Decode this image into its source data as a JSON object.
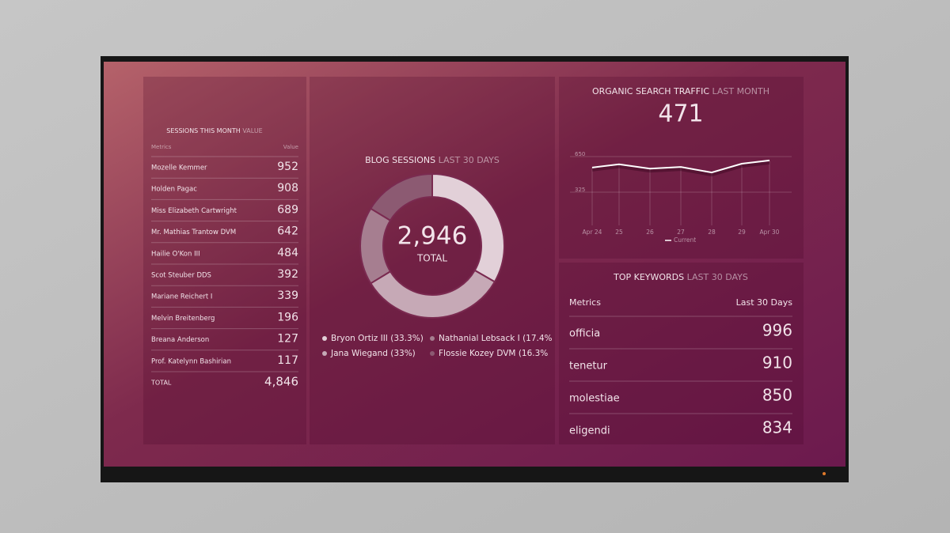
{
  "sessions_table": {
    "title": "SESSIONS THIS MONTH",
    "subtitle": "VALUE",
    "columns": [
      "Metrics",
      "Value"
    ],
    "rows": [
      [
        "Mozelle Kemmer",
        "952"
      ],
      [
        "Holden Pagac",
        "908"
      ],
      [
        "Miss Elizabeth Cartwright",
        "689"
      ],
      [
        "Mr. Mathias Trantow DVM",
        "642"
      ],
      [
        "Hailie O'Kon III",
        "484"
      ],
      [
        "Scot Steuber DDS",
        "392"
      ],
      [
        "Mariane Reichert I",
        "339"
      ],
      [
        "Melvin Breitenberg",
        "196"
      ],
      [
        "Breana Anderson",
        "127"
      ],
      [
        "Prof. Katelynn Bashirian",
        "117"
      ]
    ],
    "total": [
      "TOTAL",
      "4,846"
    ]
  },
  "blog_sessions": {
    "title": "BLOG SESSIONS",
    "subtitle": "LAST 30 DAYS",
    "total": "2,946",
    "total_label": "TOTAL",
    "donut": {
      "type": "pie",
      "labels": [
        "Bryon Ortiz III (33.3%)",
        "Jana Wiegand (33%)",
        "Nathanial Lebsack I (17.4%",
        "Flossie Kozey DVM (16.3%"
      ],
      "values": [
        33.3,
        33,
        17.4,
        16.3
      ],
      "colors": [
        "#e2d0d8",
        "#c6a9b6",
        "#a67e90",
        "#8c5a72"
      ]
    }
  },
  "traffic": {
    "title": "ORGANIC SEARCH TRAFFIC",
    "subtitle": "LAST MONTH",
    "value": "471",
    "chart": {
      "type": "line",
      "categories": [
        "Apr 24",
        "25",
        "26",
        "27",
        "28",
        "29",
        "Apr 30"
      ],
      "series": [
        {
          "name": "Current",
          "color": "#ffffff",
          "values": [
            550,
            580,
            540,
            555,
            505,
            585,
            615
          ]
        }
      ],
      "ylim": [
        0,
        700
      ],
      "yticks": [
        325,
        650
      ],
      "grid": true
    }
  },
  "keywords": {
    "title": "TOP KEYWORDS",
    "subtitle": "LAST 30 DAYS",
    "columns": [
      "Metrics",
      "Last 30 Days"
    ],
    "rows": [
      [
        "officia",
        "996"
      ],
      [
        "tenetur",
        "910"
      ],
      [
        "molestiae",
        "850"
      ],
      [
        "eligendi",
        "834"
      ]
    ]
  }
}
